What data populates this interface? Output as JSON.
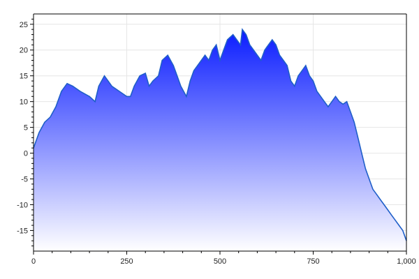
{
  "chart_data": {
    "type": "area",
    "title": "",
    "xlabel": "",
    "ylabel": "",
    "xlim": [
      0,
      1000
    ],
    "ylim": [
      -19,
      27
    ],
    "x_ticks": [
      0,
      250,
      500,
      750,
      1000
    ],
    "x_tick_labels": [
      "0",
      "250",
      "500",
      "750",
      "1,000"
    ],
    "y_ticks": [
      25,
      20,
      15,
      10,
      5,
      0,
      -5,
      -10,
      -15
    ],
    "y_tick_labels": [
      "25",
      "20",
      "15",
      "10",
      "5",
      "0",
      "-5",
      "-10",
      "-15"
    ],
    "grid": true,
    "legend": "none",
    "colors": {
      "line": "#1f5fc8",
      "fill_top": "#0a1cff",
      "fill_bottom": "#ffffff",
      "grid": "#e6e6e6",
      "axis": "#000000"
    },
    "series": [
      {
        "x": [
          0,
          15,
          30,
          45,
          60,
          75,
          90,
          105,
          125,
          150,
          165,
          175,
          190,
          200,
          210,
          230,
          250,
          260,
          270,
          285,
          300,
          310,
          320,
          335,
          345,
          360,
          375,
          385,
          395,
          410,
          420,
          430,
          440,
          450,
          460,
          470,
          480,
          490,
          500,
          510,
          520,
          535,
          545,
          555,
          560,
          570,
          580,
          590,
          600,
          610,
          620,
          630,
          640,
          650,
          660,
          670,
          680,
          690,
          700,
          710,
          720,
          730,
          740,
          750,
          760,
          770,
          780,
          790,
          800,
          810,
          820,
          830,
          840,
          850,
          860,
          870,
          880,
          890,
          900,
          910,
          920,
          930,
          940,
          950,
          960,
          970,
          980,
          990,
          1000
        ],
        "y": [
          1,
          4,
          6,
          7,
          9,
          12,
          13.5,
          13,
          12,
          11,
          10,
          13,
          15,
          14,
          13,
          12,
          11,
          11,
          13,
          15,
          15.5,
          13,
          14,
          15,
          18,
          19,
          17,
          15,
          13,
          11,
          14,
          16,
          17,
          18,
          19,
          18,
          20,
          21,
          18,
          20,
          22,
          23,
          22,
          21,
          24,
          23,
          21,
          20,
          19,
          18,
          20,
          21,
          22,
          21,
          19,
          18,
          17,
          14,
          13,
          15,
          16,
          17,
          15,
          14,
          12,
          11,
          10,
          9,
          10,
          11,
          10,
          9.5,
          10,
          8,
          6,
          3,
          0,
          -3,
          -5,
          -7,
          -8,
          -9,
          -10,
          -11,
          -12,
          -13,
          -14,
          -15,
          -17
        ]
      }
    ]
  }
}
